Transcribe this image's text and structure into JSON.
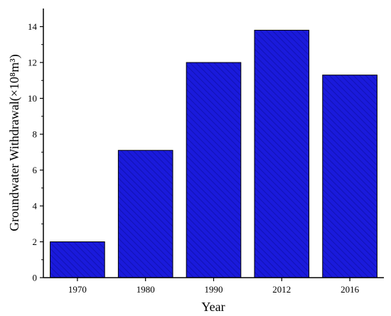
{
  "chart_data": {
    "type": "bar",
    "categories": [
      "1970",
      "1980",
      "1990",
      "2012",
      "2016"
    ],
    "values": [
      2.0,
      7.1,
      12.0,
      13.8,
      11.3
    ],
    "xlabel": "Year",
    "ylabel": "Groundwater Withdrawal(×10⁸m³)",
    "ylim": [
      0,
      15
    ],
    "yticks": [
      "0",
      "2",
      "4",
      "6",
      "8",
      "10",
      "12",
      "14"
    ],
    "grid": false,
    "bar_color": "#1a1adb",
    "bar_edge_color": "#000000"
  }
}
